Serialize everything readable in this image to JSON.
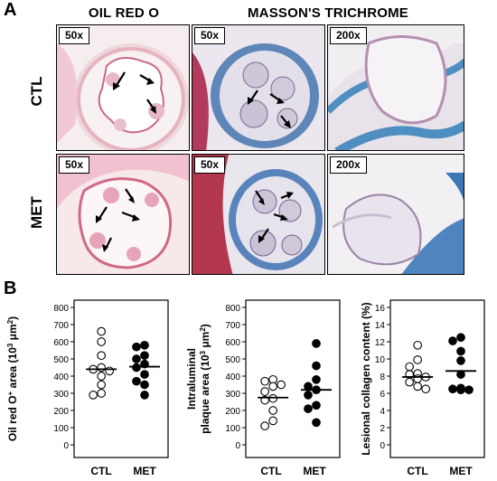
{
  "panel_a": {
    "letter": "A",
    "col_titles": [
      "OIL RED O",
      "MASSON'S TRICHROME"
    ],
    "row_labels": [
      "CTL",
      "MET"
    ],
    "images": [
      {
        "stain": "oil-red-o",
        "magnification": "50x",
        "row": "CTL"
      },
      {
        "stain": "masson",
        "magnification": "50x",
        "row": "CTL"
      },
      {
        "stain": "masson",
        "magnification": "200x",
        "row": "CTL"
      },
      {
        "stain": "oil-red-o",
        "magnification": "50x",
        "row": "MET"
      },
      {
        "stain": "masson",
        "magnification": "50x",
        "row": "MET"
      },
      {
        "stain": "masson",
        "magnification": "200x",
        "row": "MET"
      }
    ]
  },
  "panel_b": {
    "letter": "B"
  },
  "chart_data": [
    {
      "type": "scatter",
      "ylabel_line1": "Oil red O",
      "ylabel_sup": "+",
      "ylabel_line2": " area (10",
      "ylabel_sup2": "3",
      "ylabel_line3": " μm",
      "ylabel_sup3": "2",
      "ylabel_end": ")",
      "categories": [
        "CTL",
        "MET"
      ],
      "ylim": [
        0,
        800
      ],
      "yticks": [
        0,
        100,
        200,
        300,
        400,
        500,
        600,
        700,
        800
      ],
      "series": [
        {
          "name": "CTL",
          "filled": false,
          "values": [
            660,
            600,
            520,
            450,
            440,
            430,
            400,
            350,
            300,
            290
          ],
          "mean": 440
        },
        {
          "name": "MET",
          "filled": true,
          "values": [
            580,
            570,
            520,
            500,
            470,
            450,
            410,
            370,
            350,
            290
          ],
          "mean": 455
        }
      ]
    },
    {
      "type": "scatter",
      "ylabel_a": "Intraluminal",
      "ylabel_b": "plaque area (10",
      "ylabel_sup2": "3",
      "ylabel_c": " μm",
      "ylabel_sup3": "2",
      "ylabel_end": ")",
      "categories": [
        "CTL",
        "MET"
      ],
      "ylim": [
        0,
        800
      ],
      "yticks": [
        0,
        100,
        200,
        300,
        400,
        500,
        600,
        700,
        800
      ],
      "series": [
        {
          "name": "CTL",
          "filled": false,
          "values": [
            380,
            370,
            350,
            340,
            310,
            270,
            260,
            200,
            140,
            110
          ],
          "mean": 275
        },
        {
          "name": "MET",
          "filled": true,
          "values": [
            590,
            460,
            380,
            340,
            320,
            290,
            230,
            210,
            130
          ],
          "mean": 320
        }
      ]
    },
    {
      "type": "scatter",
      "ylabel": "Lesional collagen content (%)",
      "categories": [
        "CTL",
        "MET"
      ],
      "ylim": [
        0,
        16
      ],
      "yticks": [
        0,
        2,
        4,
        6,
        8,
        10,
        12,
        14,
        16
      ],
      "series": [
        {
          "name": "CTL",
          "filled": false,
          "values": [
            11.6,
            9.9,
            9.1,
            8.3,
            8.2,
            7.9,
            7.7,
            7.3,
            6.8,
            6.5
          ],
          "mean": 7.9
        },
        {
          "name": "MET",
          "filled": true,
          "values": [
            12.5,
            12.1,
            10.9,
            9.8,
            8.2,
            6.6,
            6.5,
            6.4,
            6.4
          ],
          "mean": 8.6
        }
      ]
    }
  ]
}
